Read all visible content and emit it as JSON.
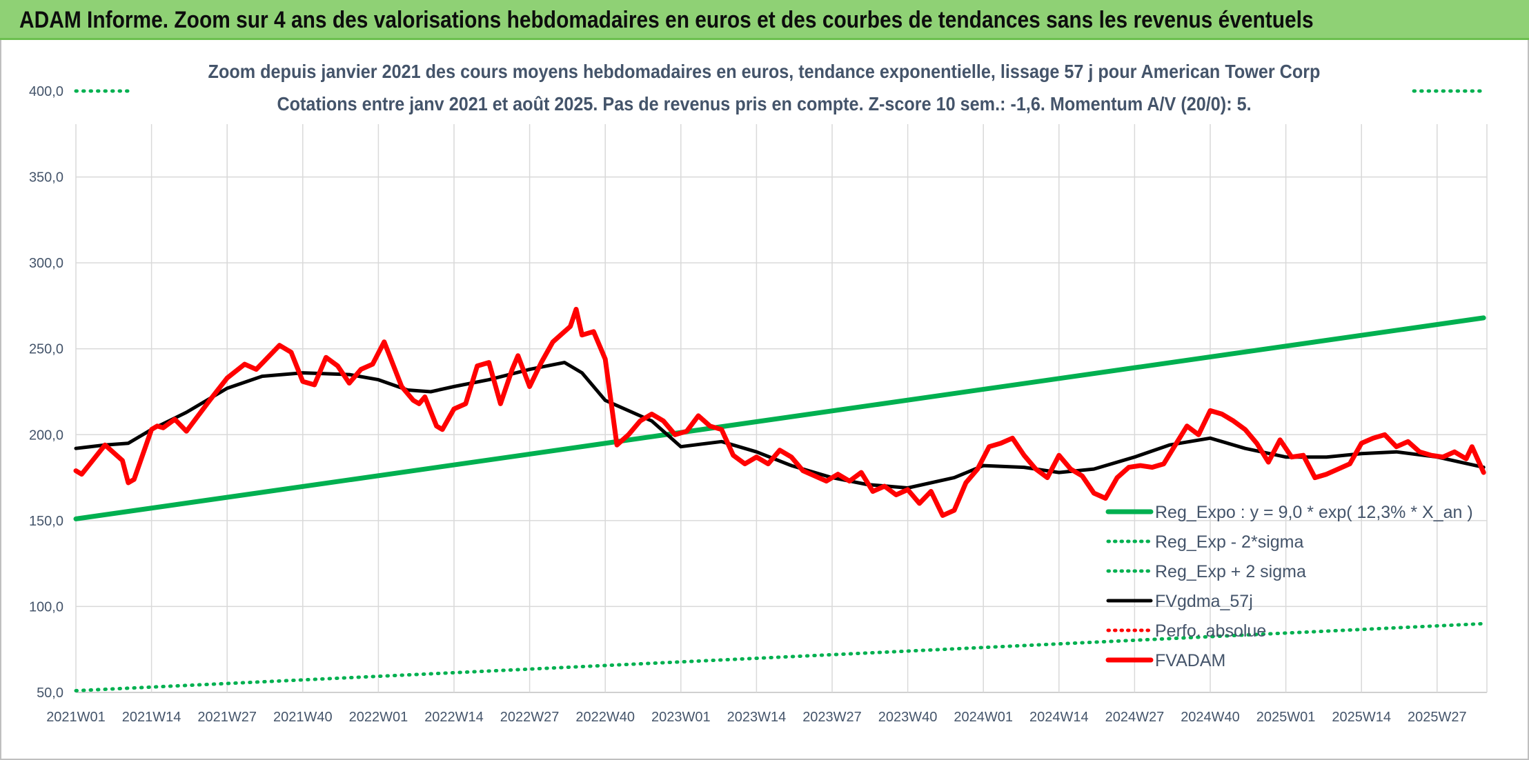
{
  "header": {
    "title": "ADAM Informe. Zoom sur 4 ans des valorisations hebdomadaires en euros et des courbes de tendances sans les revenus éventuels"
  },
  "chart_data": {
    "type": "line",
    "title": "Zoom depuis janvier 2021 des cours moyens hebdomadaires en euros, tendance exponentielle, lissage 57 j pour American Tower Corp",
    "subtitle": "Cotations entre janv 2021 et août 2025. Pas de revenus pris en compte. Z-score 10 sem.: -1,6. Momentum A/V (20/0): 5.",
    "xlabel": "",
    "ylabel": "",
    "ylim": [
      50,
      400
    ],
    "yticks": [
      "50,0",
      "100,0",
      "150,0",
      "200,0",
      "250,0",
      "300,0",
      "350,0",
      "400,0"
    ],
    "x_tick_labels": [
      "2021W01",
      "2021W14",
      "2021W27",
      "2021W40",
      "2022W01",
      "2022W14",
      "2022W27",
      "2022W40",
      "2023W01",
      "2023W14",
      "2023W27",
      "2023W40",
      "2024W01",
      "2024W14",
      "2024W27",
      "2024W40",
      "2025W01",
      "2025W14",
      "2025W27"
    ],
    "grid": true,
    "legend_position": "bottom-right",
    "colors": {
      "reg_expo": "#00b050",
      "fvgdma": "#000000",
      "perfo": "#ff0000",
      "fvadam": "#ff0000",
      "axis_text": "#44546a",
      "grid": "#d9d9d9"
    },
    "legend": [
      {
        "key": "reg_expo",
        "label": "Reg_Expo : y = 9,0 * exp( 12,3% *  X_an )",
        "style": "solid-thick"
      },
      {
        "key": "reg_minus",
        "label": "Reg_Exp - 2*sigma",
        "style": "dotted"
      },
      {
        "key": "reg_plus",
        "label": "Reg_Exp + 2 sigma",
        "style": "dotted"
      },
      {
        "key": "fvgdma",
        "label": "FVgdma_57j",
        "style": "solid"
      },
      {
        "key": "perfo",
        "label": "Perfo. absolue",
        "style": "dotted"
      },
      {
        "key": "fvadam",
        "label": "FVADAM",
        "style": "solid-thick"
      }
    ],
    "series": [
      {
        "key": "reg_expo",
        "name": "Reg_Expo : y = 9,0 * exp( 12,3% *  X_an )",
        "x": [
          "2021W01",
          "2025W35"
        ],
        "y": [
          151,
          268
        ]
      },
      {
        "key": "reg_minus",
        "name": "Reg_Exp - 2*sigma",
        "x": [
          "2021W01",
          "2025W35"
        ],
        "y": [
          51,
          90
        ]
      },
      {
        "key": "reg_plus",
        "name": "Reg_Exp + 2 sigma",
        "x": [
          "2021W01",
          "2021W10",
          "2025W23",
          "2025W35"
        ],
        "y": [
          400,
          400,
          400,
          400
        ]
      },
      {
        "key": "fvgdma",
        "name": "FVgdma_57j",
        "x": [
          "2021W01",
          "2021W06",
          "2021W10",
          "2021W14",
          "2021W20",
          "2021W27",
          "2021W33",
          "2021W40",
          "2021W48",
          "2022W01",
          "2022W06",
          "2022W10",
          "2022W14",
          "2022W20",
          "2022W27",
          "2022W33",
          "2022W36",
          "2022W40",
          "2022W48",
          "2023W01",
          "2023W08",
          "2023W14",
          "2023W20",
          "2023W27",
          "2023W33",
          "2023W40",
          "2023W48",
          "2024W01",
          "2024W08",
          "2024W14",
          "2024W20",
          "2024W27",
          "2024W33",
          "2024W40",
          "2024W46",
          "2025W01",
          "2025W08",
          "2025W14",
          "2025W20",
          "2025W27",
          "2025W35"
        ],
        "y": [
          192,
          194,
          195,
          203,
          213,
          227,
          234,
          236,
          235,
          232,
          226,
          225,
          228,
          232,
          238,
          242,
          236,
          220,
          208,
          193,
          196,
          190,
          182,
          175,
          171,
          169,
          175,
          182,
          181,
          178,
          180,
          187,
          194,
          198,
          192,
          187,
          187,
          189,
          190,
          187,
          181
        ]
      },
      {
        "key": "fvadam",
        "name": "FVADAM",
        "x": [
          "2021W01",
          "2021W02",
          "2021W06",
          "2021W09",
          "2021W10",
          "2021W11",
          "2021W14",
          "2021W15",
          "2021W16",
          "2021W18",
          "2021W20",
          "2021W24",
          "2021W27",
          "2021W30",
          "2021W32",
          "2021W34",
          "2021W36",
          "2021W38",
          "2021W40",
          "2021W42",
          "2021W44",
          "2021W46",
          "2021W48",
          "2021W50",
          "2021W52",
          "2022W02",
          "2022W05",
          "2022W07",
          "2022W08",
          "2022W09",
          "2022W11",
          "2022W12",
          "2022W14",
          "2022W16",
          "2022W18",
          "2022W20",
          "2022W22",
          "2022W24",
          "2022W25",
          "2022W27",
          "2022W29",
          "2022W31",
          "2022W33",
          "2022W34",
          "2022W35",
          "2022W36",
          "2022W38",
          "2022W40",
          "2022W42",
          "2022W44",
          "2022W46",
          "2022W48",
          "2022W50",
          "2022W52",
          "2023W02",
          "2023W04",
          "2023W06",
          "2023W08",
          "2023W10",
          "2023W12",
          "2023W14",
          "2023W16",
          "2023W18",
          "2023W20",
          "2023W22",
          "2023W24",
          "2023W26",
          "2023W28",
          "2023W30",
          "2023W32",
          "2023W34",
          "2023W36",
          "2023W38",
          "2023W40",
          "2023W42",
          "2023W44",
          "2023W46",
          "2023W48",
          "2023W50",
          "2023W52",
          "2024W02",
          "2024W04",
          "2024W06",
          "2024W08",
          "2024W10",
          "2024W12",
          "2024W14",
          "2024W16",
          "2024W18",
          "2024W20",
          "2024W22",
          "2024W24",
          "2024W26",
          "2024W28",
          "2024W30",
          "2024W32",
          "2024W34",
          "2024W36",
          "2024W38",
          "2024W40",
          "2024W42",
          "2024W44",
          "2024W46",
          "2024W48",
          "2024W50",
          "2024W52",
          "2025W02",
          "2025W04",
          "2025W06",
          "2025W08",
          "2025W10",
          "2025W12",
          "2025W14",
          "2025W16",
          "2025W18",
          "2025W20",
          "2025W22",
          "2025W24",
          "2025W26",
          "2025W28",
          "2025W30",
          "2025W32",
          "2025W33",
          "2025W35"
        ],
        "y": [
          179,
          177,
          194,
          185,
          172,
          174,
          203,
          205,
          204,
          209,
          202,
          220,
          233,
          241,
          238,
          245,
          252,
          248,
          231,
          229,
          245,
          240,
          230,
          238,
          241,
          254,
          228,
          220,
          218,
          222,
          205,
          203,
          215,
          218,
          240,
          242,
          218,
          238,
          246,
          228,
          242,
          254,
          260,
          263,
          273,
          258,
          260,
          244,
          194,
          200,
          208,
          212,
          208,
          200,
          202,
          211,
          205,
          203,
          188,
          183,
          187,
          183,
          191,
          187,
          179,
          176,
          173,
          177,
          173,
          178,
          167,
          170,
          165,
          168,
          160,
          167,
          153,
          156,
          172,
          180,
          193,
          195,
          198,
          188,
          180,
          175,
          188,
          180,
          176,
          166,
          163,
          175,
          181,
          182,
          181,
          183,
          194,
          205,
          200,
          214,
          212,
          208,
          203,
          195,
          184,
          197,
          187,
          188,
          175,
          177,
          180,
          183,
          195,
          198,
          200,
          193,
          196,
          190,
          188,
          187,
          190,
          186,
          193,
          178
        ]
      }
    ]
  }
}
